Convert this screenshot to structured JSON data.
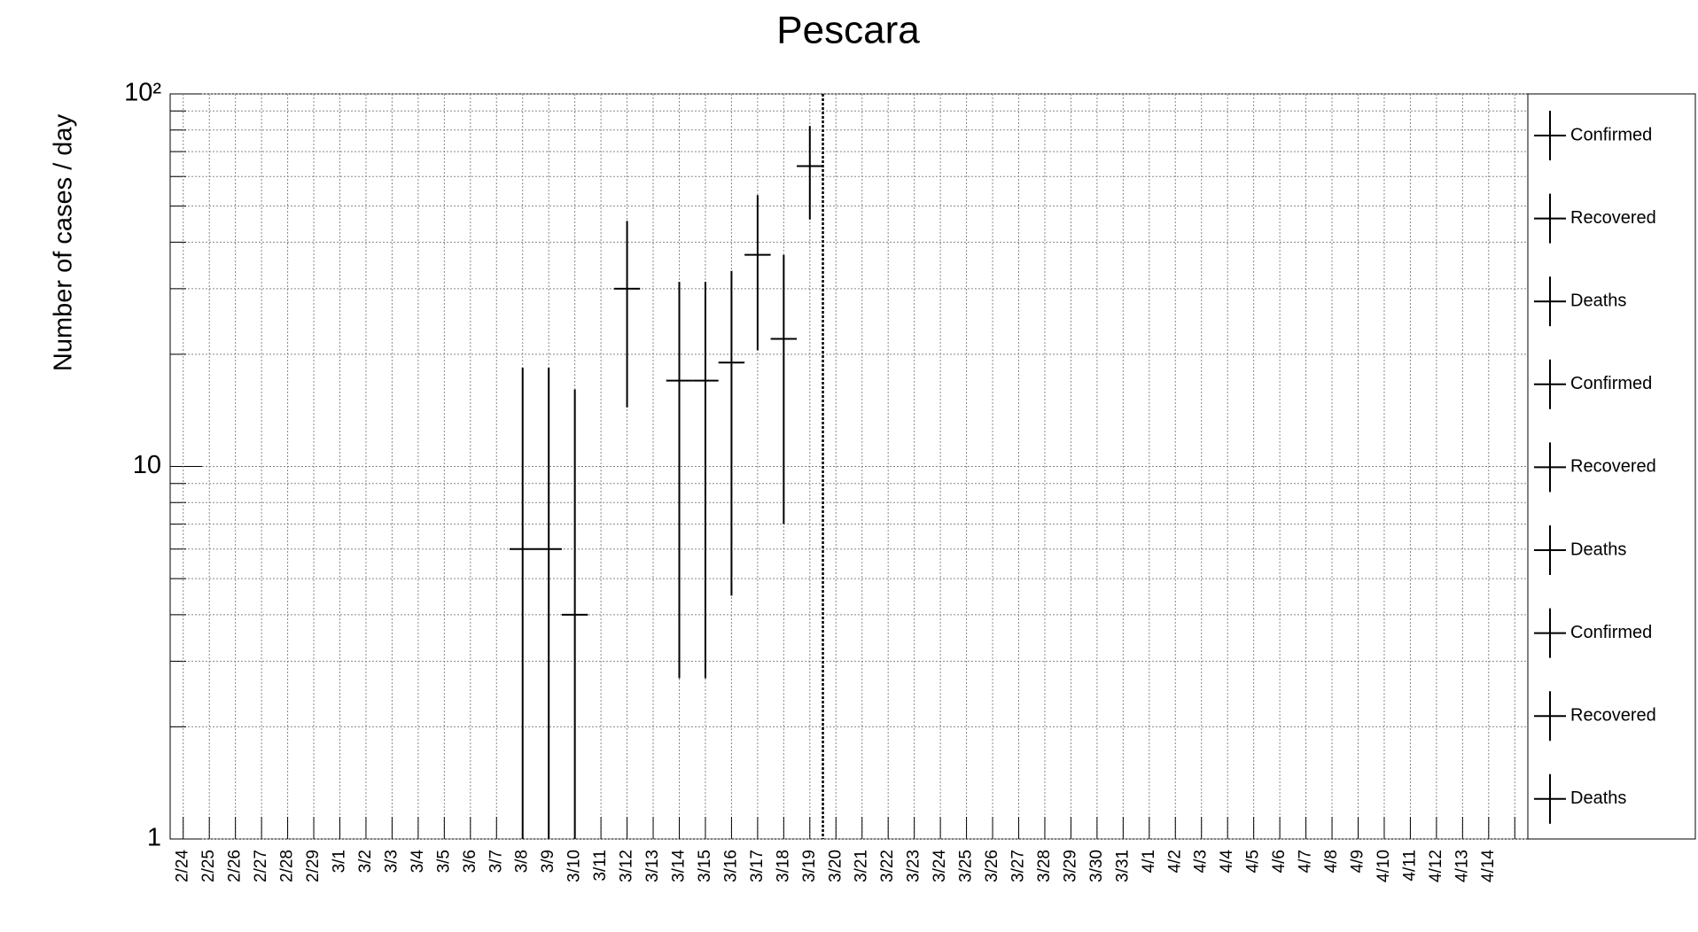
{
  "chart_data": {
    "type": "errorbar",
    "title": "Pescara",
    "y_label": "Number of cases / day",
    "categories": [
      "2/24",
      "2/25",
      "2/26",
      "2/27",
      "2/28",
      "2/29",
      "3/1",
      "3/2",
      "3/3",
      "3/4",
      "3/5",
      "3/6",
      "3/7",
      "3/8",
      "3/9",
      "3/10",
      "3/11",
      "3/12",
      "3/13",
      "3/14",
      "3/15",
      "3/16",
      "3/17",
      "3/18",
      "3/19",
      "3/20",
      "3/21",
      "3/22",
      "3/23",
      "3/24",
      "3/25",
      "3/26",
      "3/27",
      "3/28",
      "3/29",
      "3/30",
      "3/31",
      "4/1",
      "4/2",
      "4/3",
      "4/4",
      "4/5",
      "4/6",
      "4/7",
      "4/8",
      "4/9",
      "4/10",
      "4/11",
      "4/12",
      "4/13",
      "4/14",
      null
    ],
    "series": [
      {
        "name": "Confirmed",
        "color": "#000000",
        "values": [
          null,
          null,
          null,
          null,
          null,
          null,
          null,
          null,
          null,
          null,
          null,
          null,
          null,
          6,
          6,
          4,
          null,
          30,
          null,
          17,
          17,
          19,
          37,
          22,
          64,
          null,
          null,
          null,
          null,
          null,
          null,
          null,
          null,
          null,
          null,
          null,
          null,
          null,
          null,
          null,
          null,
          null,
          null,
          null,
          null,
          null,
          null,
          null,
          null,
          null,
          null,
          null
        ],
        "errors": [
          null,
          null,
          null,
          null,
          null,
          null,
          null,
          null,
          null,
          null,
          null,
          null,
          null,
          12.4,
          12.4,
          12.1,
          null,
          15.6,
          null,
          14.3,
          14.3,
          14.5,
          16.5,
          15,
          18,
          null,
          null,
          null,
          null,
          null,
          null,
          null,
          null,
          null,
          null,
          null,
          null,
          null,
          null,
          null,
          null,
          null,
          null,
          null,
          null,
          null,
          null,
          null,
          null,
          null,
          null,
          null
        ]
      }
    ],
    "legend": [
      "Confirmed",
      "Recovered",
      "Deaths",
      "Confirmed",
      "Recovered",
      "Deaths",
      "Confirmed",
      "Recovered",
      "Deaths"
    ],
    "ylim": [
      1,
      100
    ],
    "yscale": "log",
    "yticks": [
      1,
      10,
      {
        "value": 100,
        "label": "10²"
      }
    ],
    "yminor_ticks": [
      2,
      3,
      4,
      5,
      6,
      7,
      8,
      9,
      20,
      30,
      40,
      50,
      60,
      70,
      80,
      90
    ],
    "grid": true
  }
}
